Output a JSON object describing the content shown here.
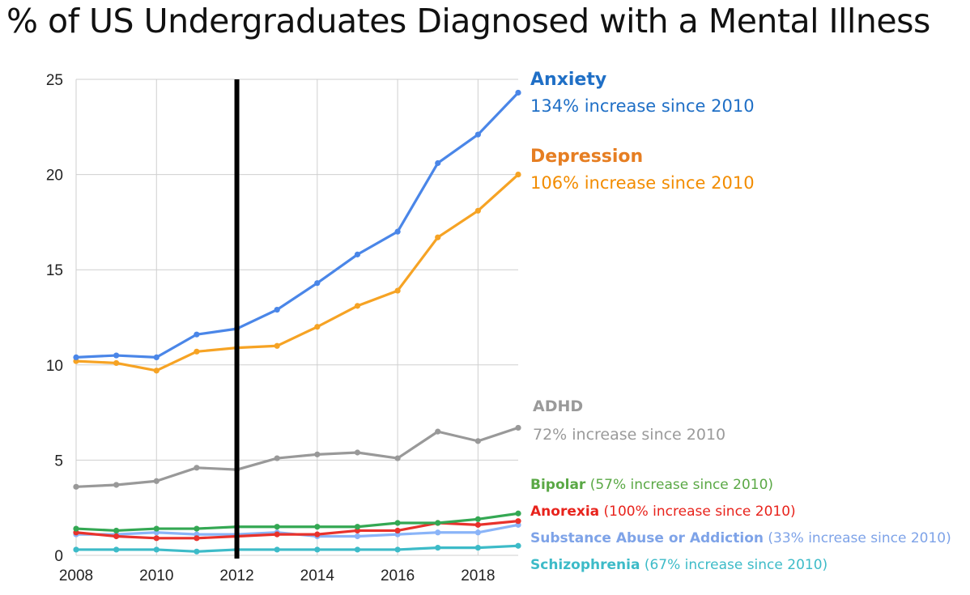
{
  "title": "% of US Undergraduates Diagnosed with a Mental Illness",
  "chart_data": {
    "type": "line",
    "x": [
      2008,
      2009,
      2010,
      2011,
      2012,
      2013,
      2014,
      2015,
      2016,
      2017,
      2018,
      2019
    ],
    "x_tick_labels": [
      "2008",
      "2010",
      "2012",
      "2014",
      "2016",
      "2018"
    ],
    "y_tick_labels": [
      "0",
      "5",
      "10",
      "15",
      "20",
      "25"
    ],
    "ylim": [
      0,
      25
    ],
    "grid": true,
    "vertical_marker_x": 2012,
    "series": [
      {
        "name": "Anxiety",
        "color": "#4a86e8",
        "values": [
          10.4,
          10.5,
          10.4,
          11.6,
          11.9,
          12.9,
          14.3,
          15.8,
          17.0,
          20.6,
          22.1,
          24.3
        ]
      },
      {
        "name": "Depression",
        "color": "#f6a324",
        "values": [
          10.2,
          10.1,
          9.7,
          10.7,
          10.9,
          11.0,
          12.0,
          13.1,
          13.9,
          16.7,
          18.1,
          20.0
        ]
      },
      {
        "name": "ADHD",
        "color": "#999999",
        "values": [
          3.6,
          3.7,
          3.9,
          4.6,
          4.5,
          5.1,
          5.3,
          5.4,
          5.1,
          6.5,
          6.0,
          6.7
        ]
      },
      {
        "name": "Bipolar",
        "color": "#34a853",
        "values": [
          1.4,
          1.3,
          1.4,
          1.4,
          1.5,
          1.5,
          1.5,
          1.5,
          1.7,
          1.7,
          1.9,
          2.2
        ]
      },
      {
        "name": "Anorexia",
        "color": "#e8322c",
        "values": [
          1.2,
          1.0,
          0.9,
          0.9,
          1.0,
          1.1,
          1.1,
          1.3,
          1.3,
          1.7,
          1.6,
          1.8
        ]
      },
      {
        "name": "Substance Abuse or Addiction",
        "color": "#8ab4f8",
        "values": [
          1.1,
          1.1,
          1.2,
          1.1,
          1.1,
          1.2,
          1.0,
          1.0,
          1.1,
          1.2,
          1.2,
          1.6
        ]
      },
      {
        "name": "Schizophrenia",
        "color": "#3dbbc8",
        "values": [
          0.3,
          0.3,
          0.3,
          0.2,
          0.3,
          0.3,
          0.3,
          0.3,
          0.3,
          0.4,
          0.4,
          0.5
        ]
      }
    ]
  },
  "annotations": {
    "anxiety": {
      "label": "Anxiety",
      "note": "134% increase since 2010",
      "color": "#1f6fc6"
    },
    "depression": {
      "label": "Depression",
      "note": "106% increase since 2010",
      "color": "#e67e22",
      "note_color": "#f28c00"
    },
    "adhd": {
      "label": "ADHD",
      "note": "72% increase since 2010",
      "color": "#9a9a9a"
    },
    "bipolar": {
      "label": "Bipolar",
      "note": " (57% increase since 2010)",
      "color": "#5aa845"
    },
    "anorexia": {
      "label": "Anorexia",
      "note": " (100% increase since 2010)",
      "color": "#e8231c"
    },
    "substance": {
      "label": "Substance Abuse or Addiction",
      "note": " (33% increase since 2010)",
      "color": "#7ea3e8"
    },
    "schizophrenia": {
      "label": "Schizophrenia",
      "note": " (67% increase since 2010)",
      "color": "#3dbbc8"
    }
  }
}
